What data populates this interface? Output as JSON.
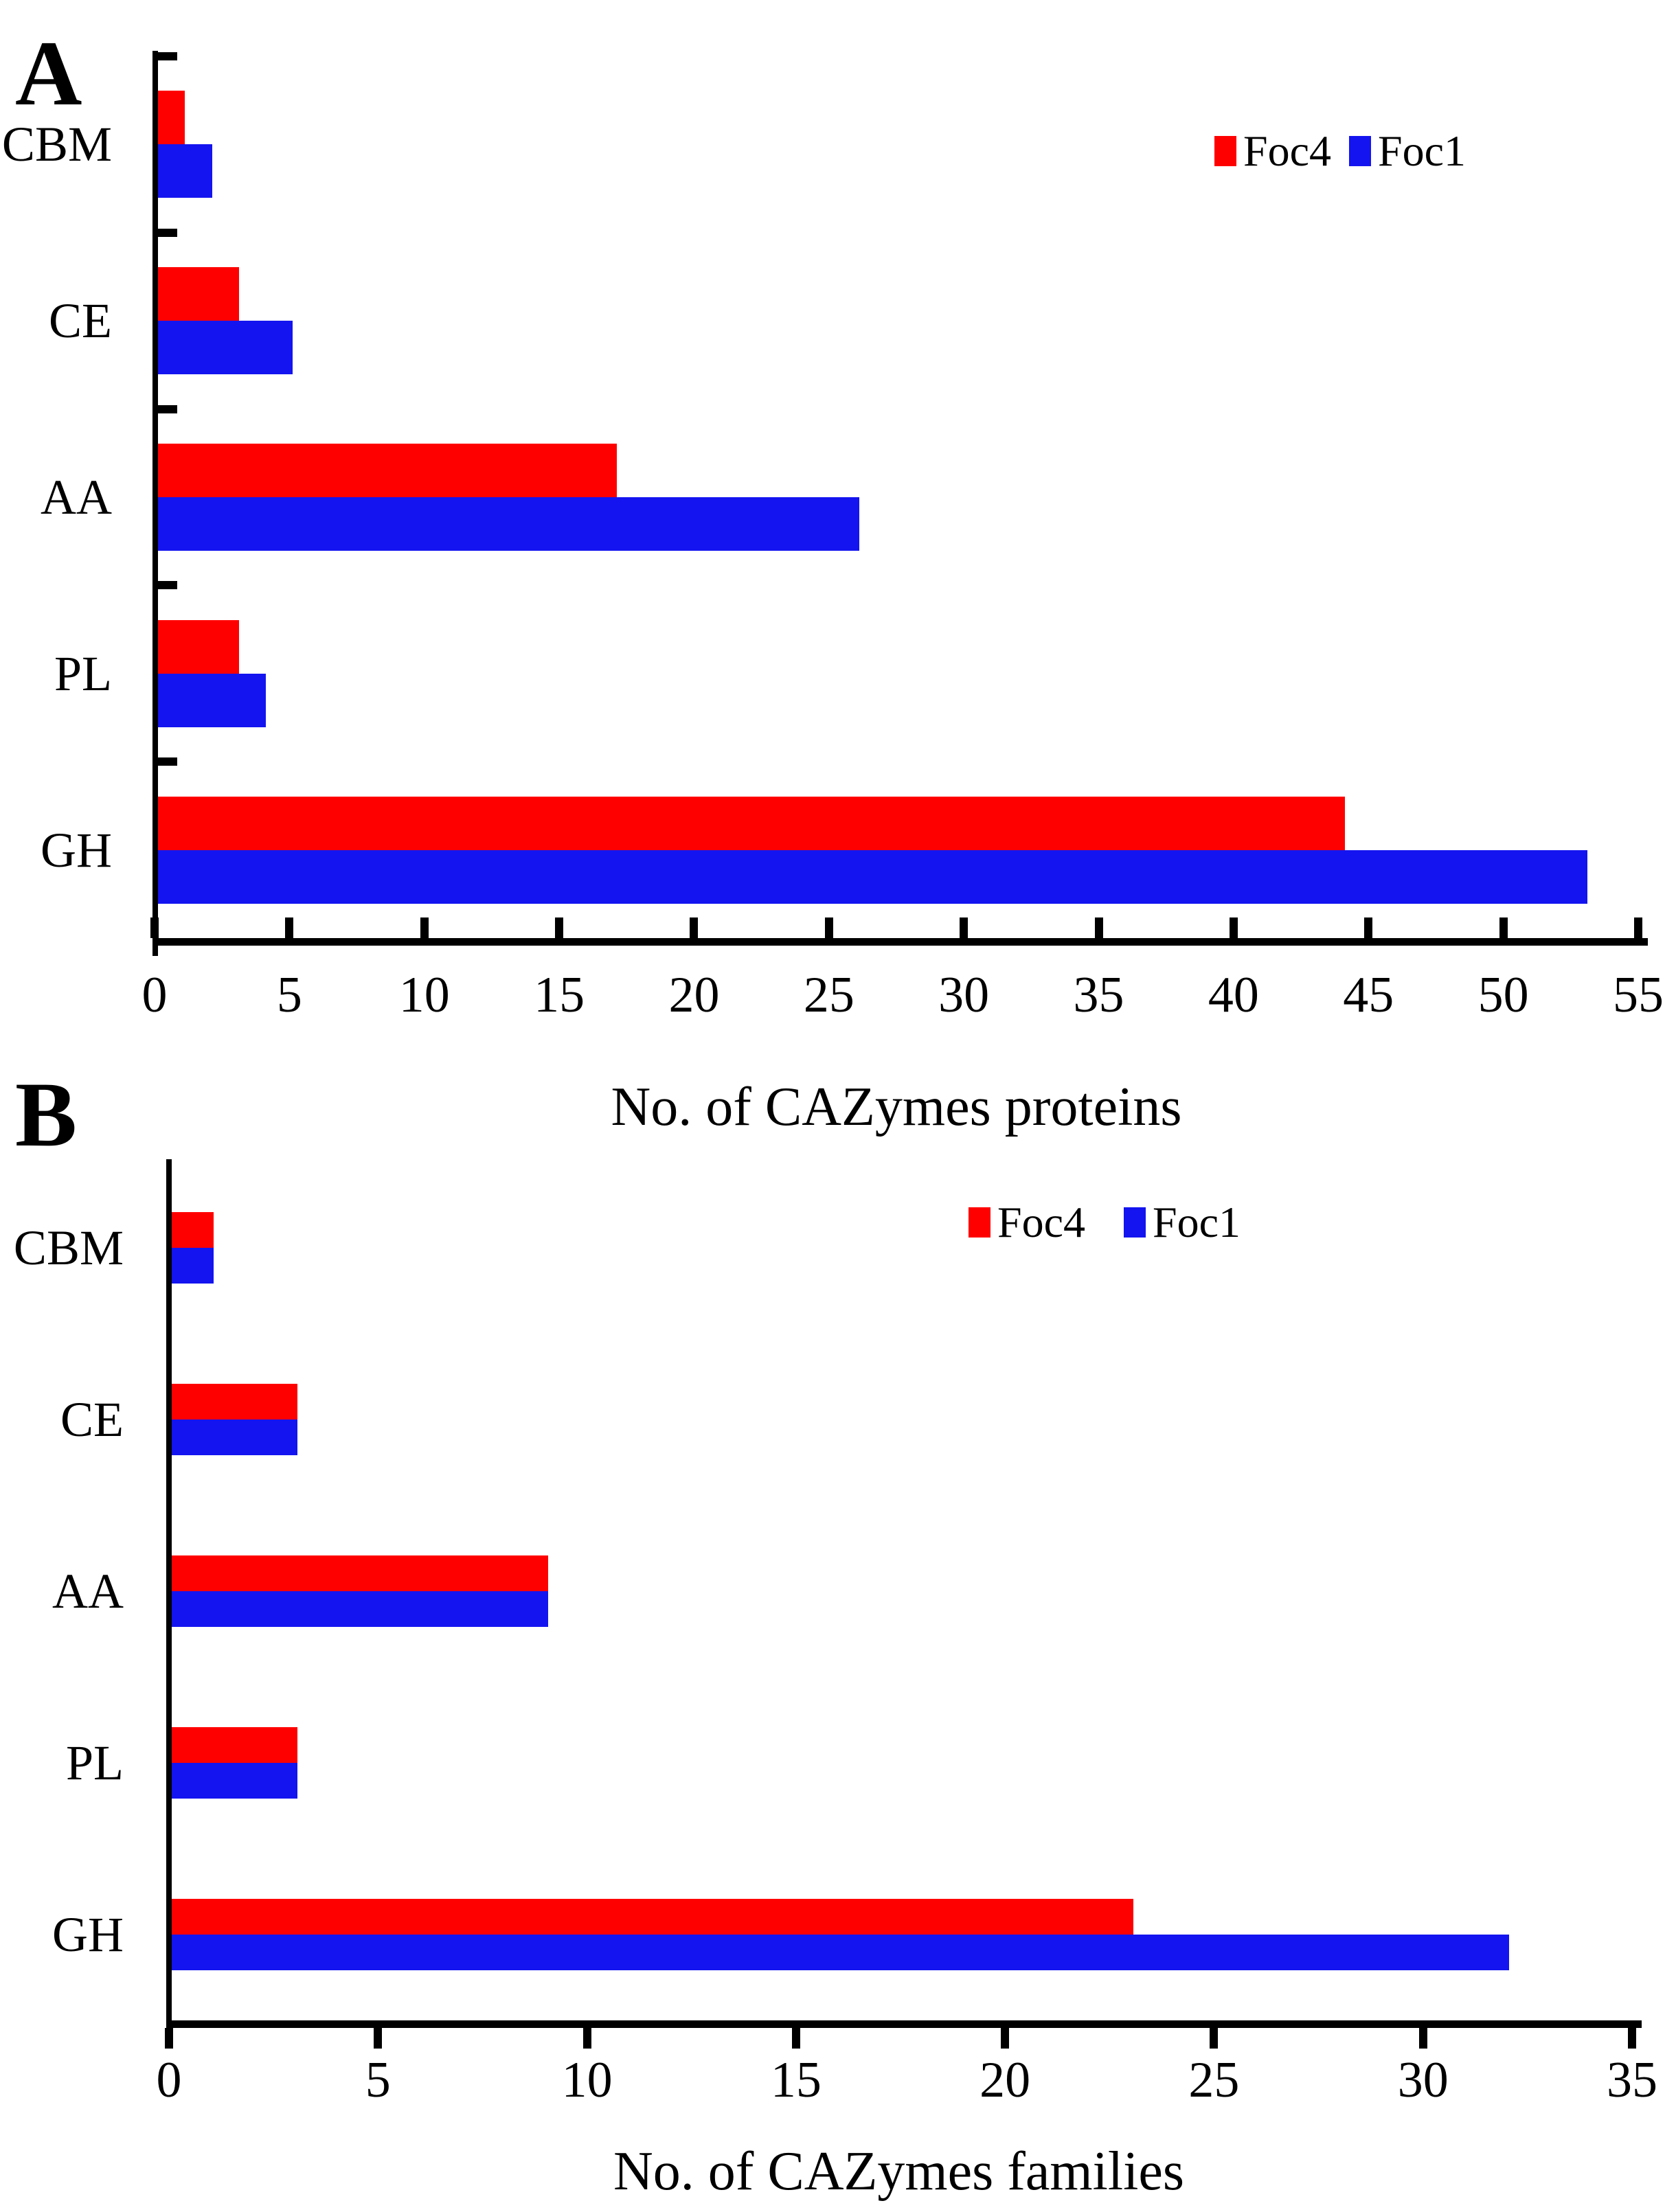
{
  "figure": {
    "background": "#ffffff",
    "text_color": "#000000"
  },
  "chart_data": [
    {
      "type": "bar",
      "orientation": "horizontal",
      "panel_label": "A",
      "xlabel": "No. of CAZymes proteins",
      "categories": [
        "CBM",
        "CE",
        "AA",
        "PL",
        "GH"
      ],
      "series": [
        {
          "name": "Foc4",
          "color": "#ff0000",
          "values": [
            1,
            3,
            17,
            3,
            44
          ]
        },
        {
          "name": "Foc1",
          "color": "#1414f0",
          "values": [
            2,
            5,
            26,
            4,
            53
          ]
        }
      ],
      "xlim": [
        0,
        55
      ],
      "xticks": [
        0,
        5,
        10,
        15,
        20,
        25,
        30,
        35,
        40,
        45,
        50,
        55
      ],
      "grid": false,
      "legend_position": "top-right"
    },
    {
      "type": "bar",
      "orientation": "horizontal",
      "panel_label": "B",
      "xlabel": "No. of CAZymes families",
      "categories": [
        "CBM",
        "CE",
        "AA",
        "PL",
        "GH"
      ],
      "series": [
        {
          "name": "Foc4",
          "color": "#ff0000",
          "values": [
            1,
            3,
            9,
            3,
            23
          ]
        },
        {
          "name": "Foc1",
          "color": "#1414f0",
          "values": [
            1,
            3,
            9,
            3,
            32
          ]
        }
      ],
      "xlim": [
        0,
        35
      ],
      "xticks": [
        0,
        5,
        10,
        15,
        20,
        25,
        30,
        35
      ],
      "grid": false,
      "legend_position": "top-center"
    }
  ]
}
